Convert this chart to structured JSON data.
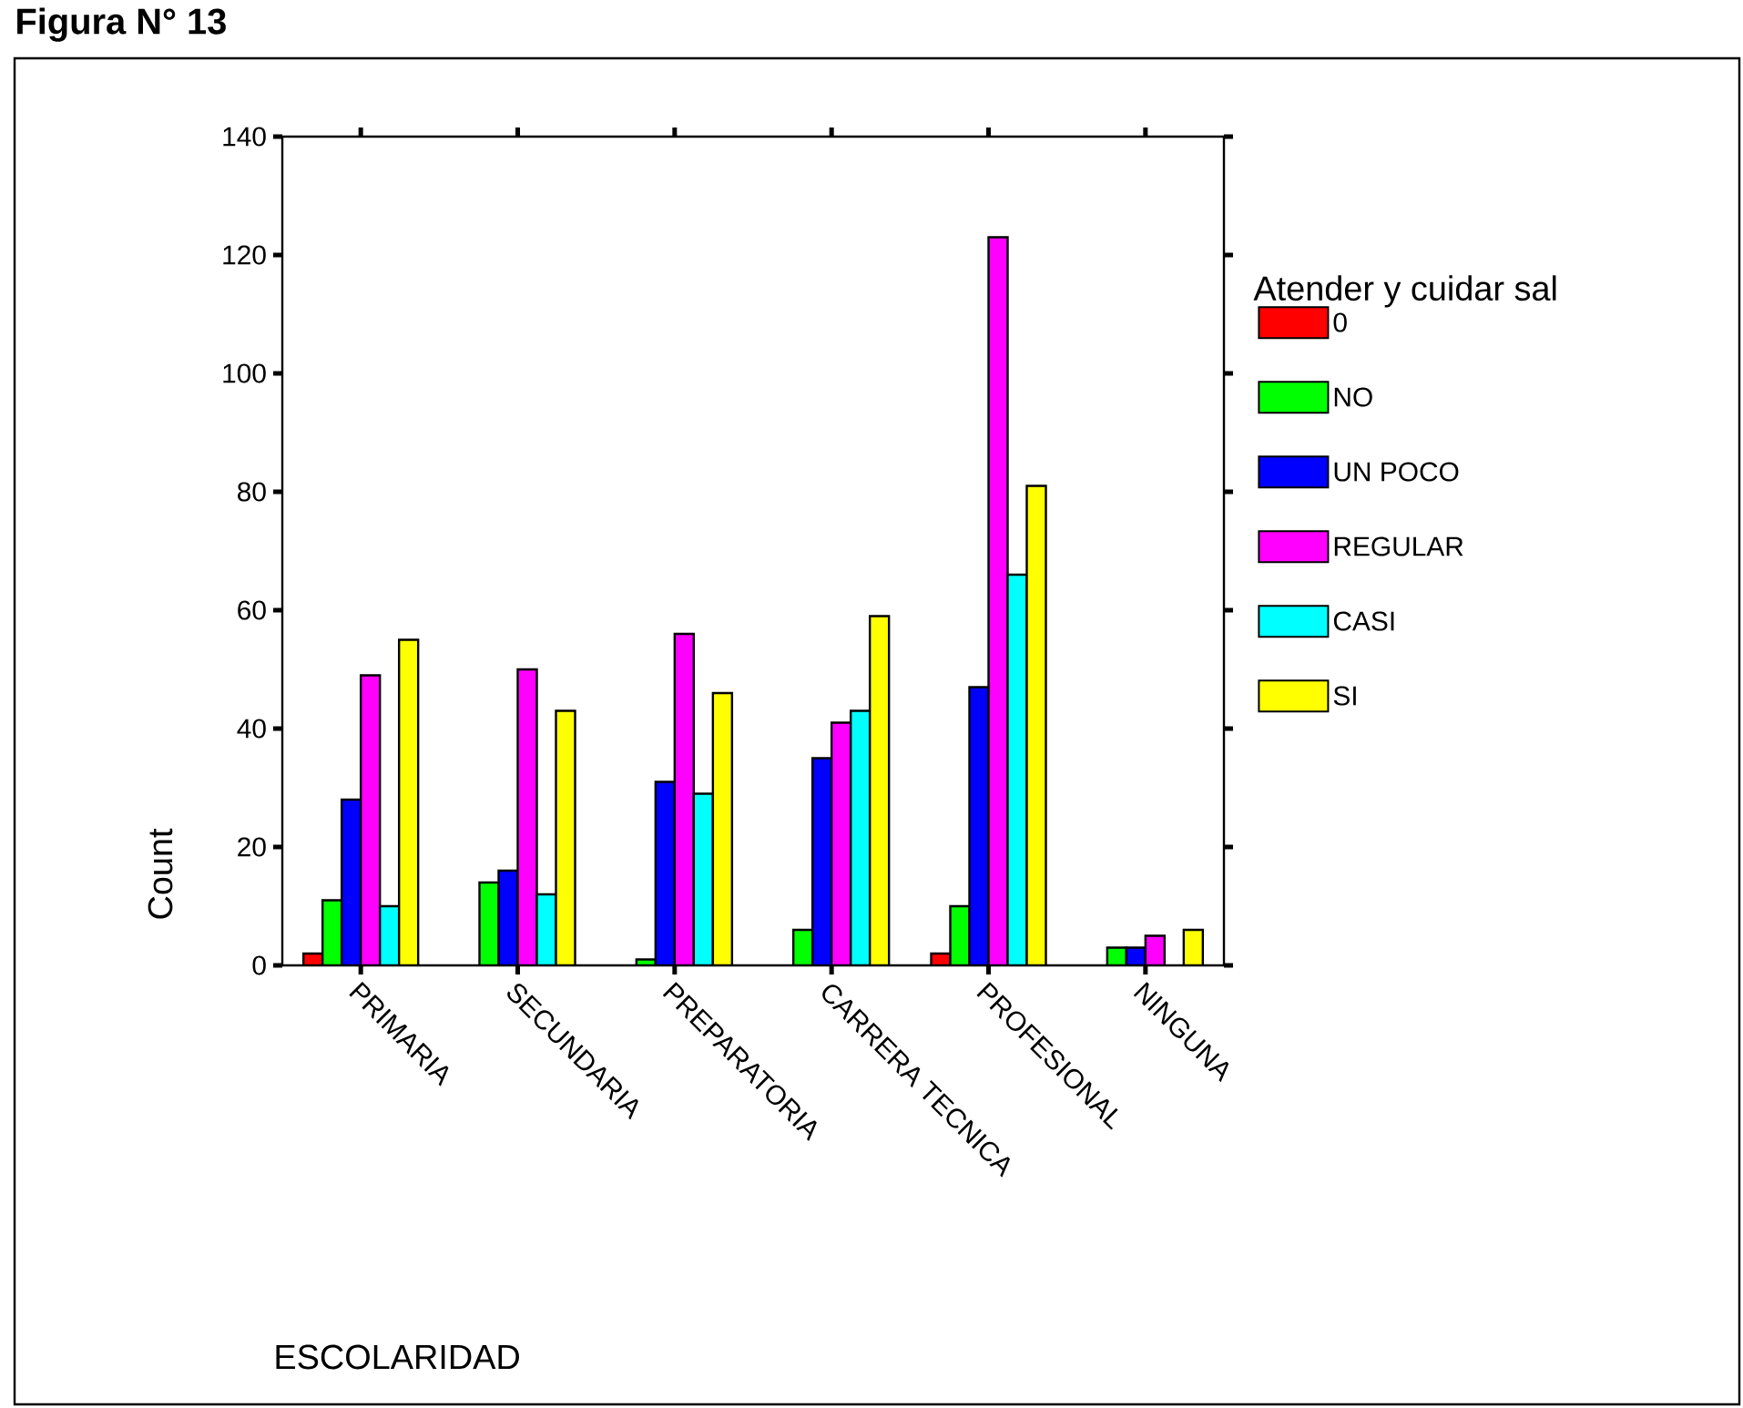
{
  "chart_data": {
    "type": "bar",
    "title": "Figura N° 13",
    "xlabel": "ESCOLARIDAD",
    "ylabel": "Count",
    "legend_title": "Atender y cuidar sal",
    "categories": [
      "PRIMARIA",
      "SECUNDARIA",
      "PREPARATORIA",
      "CARRERA TECNICA",
      "PROFESIONAL",
      "NINGUNA"
    ],
    "series": [
      {
        "name": "0",
        "color": "#ff0000",
        "values": [
          2,
          null,
          null,
          null,
          2,
          null
        ]
      },
      {
        "name": "NO",
        "color": "#00ff00",
        "values": [
          11,
          14,
          1,
          6,
          10,
          3
        ]
      },
      {
        "name": "UN POCO",
        "color": "#0000ff",
        "values": [
          28,
          16,
          31,
          35,
          47,
          3
        ]
      },
      {
        "name": "REGULAR",
        "color": "#ff00ff",
        "values": [
          49,
          50,
          56,
          41,
          123,
          5
        ]
      },
      {
        "name": "CASI",
        "color": "#00ffff",
        "values": [
          10,
          12,
          29,
          43,
          66,
          null
        ]
      },
      {
        "name": "SI",
        "color": "#ffff00",
        "values": [
          55,
          43,
          46,
          59,
          81,
          6
        ]
      }
    ],
    "ylim": [
      0,
      140
    ],
    "yticks": [
      0,
      20,
      40,
      60,
      80,
      100,
      120,
      140
    ],
    "grid": false,
    "legend": "right"
  }
}
